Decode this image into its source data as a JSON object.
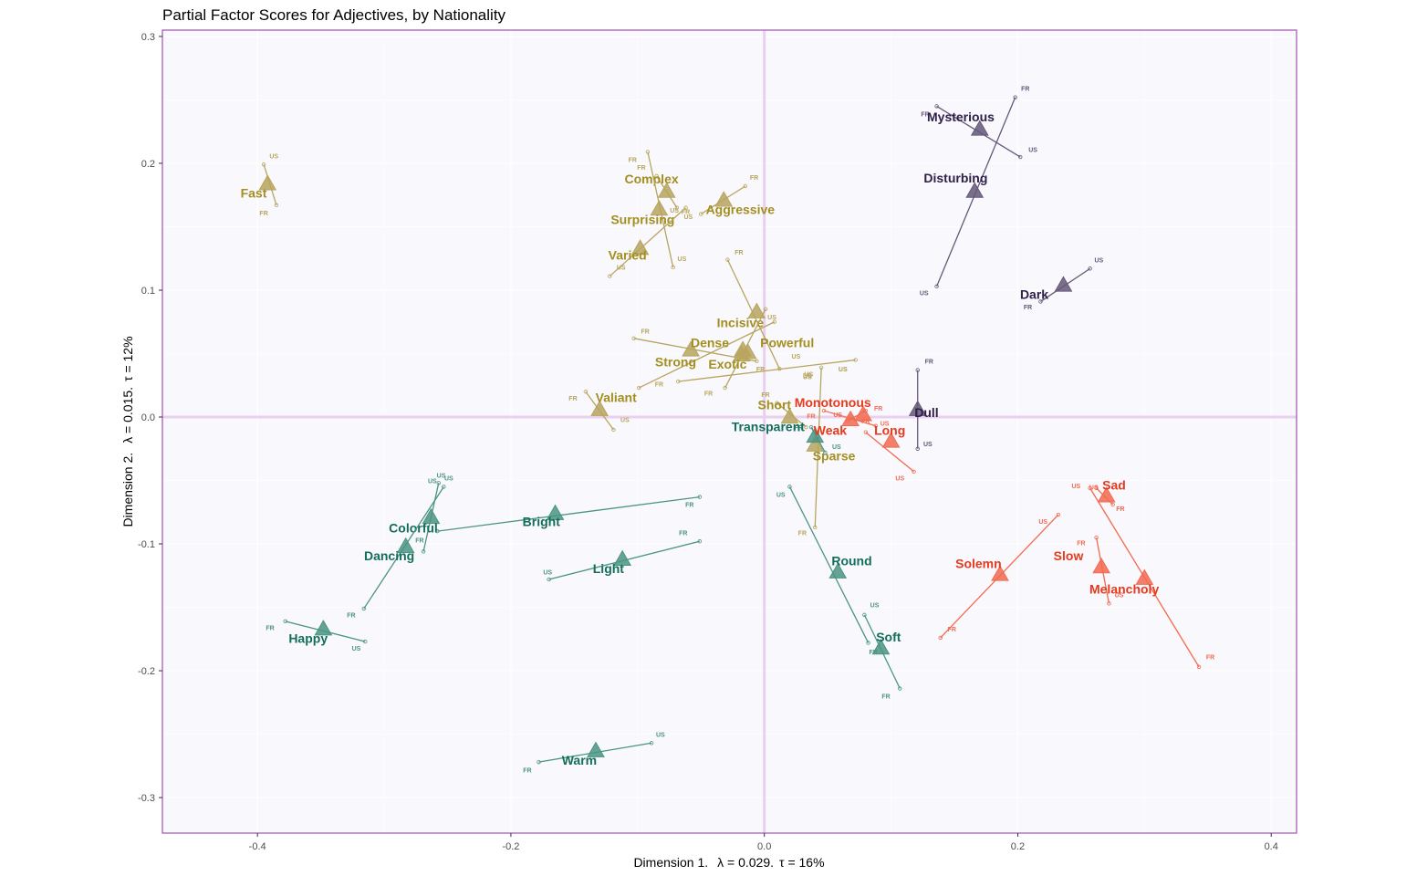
{
  "chart_data": {
    "type": "scatter",
    "title": "Partial Factor Scores for Adjectives, by Nationality",
    "xlabel_parts": [
      "Dimension 1.",
      "λ = 0.029.",
      "τ = 16%"
    ],
    "ylabel_parts": [
      "Dimension 2.",
      "λ = 0.015.",
      "τ = 12%"
    ],
    "xlim": [
      -0.475,
      0.42
    ],
    "ylim": [
      -0.328,
      0.305
    ],
    "xticks": [
      -0.4,
      -0.2,
      0.0,
      0.2,
      0.4
    ],
    "xtick_labels": [
      "-0.4",
      "-0.2",
      "0.0",
      "0.2",
      "0.4"
    ],
    "yticks": [
      -0.3,
      -0.2,
      -0.1,
      0.0,
      0.1,
      0.2,
      0.3
    ],
    "ytick_labels": [
      "-0.3",
      "-0.2",
      "-0.1",
      "0.0",
      "0.1",
      "0.2",
      "0.3"
    ],
    "colors": {
      "olive": "#A38F20",
      "olive_fill": "#B7A55E",
      "teal": "#126E5B",
      "teal_fill": "#4A9482",
      "red": "#E63A1C",
      "red_fill": "#F26A50",
      "purple": "#302048",
      "purple_fill": "#655878",
      "background": "#F9F8FD",
      "border": "#A050B0",
      "origin_line": "#E8D0EE"
    },
    "points": [
      {
        "label": "Fast",
        "group": "olive",
        "x": -0.392,
        "y": 0.184,
        "lx": -0.403,
        "ly": 0.173,
        "fr": [
          -0.385,
          0.167
        ],
        "us": [
          -0.395,
          0.199
        ],
        "frl": [
          -0.395,
          0.159
        ],
        "usl": [
          -0.387,
          0.204
        ]
      },
      {
        "label": "Complex",
        "group": "olive",
        "x": -0.077,
        "y": 0.178,
        "lx": -0.089,
        "ly": 0.184,
        "fr": [
          -0.085,
          0.19
        ],
        "us": [
          -0.069,
          0.165
        ],
        "frl": [
          -0.097,
          0.195
        ],
        "usl": [
          -0.071,
          0.161
        ]
      },
      {
        "label": "Aggressive",
        "group": "olive",
        "x": -0.032,
        "y": 0.171,
        "lx": -0.019,
        "ly": 0.16,
        "fr": [
          -0.015,
          0.182
        ],
        "us": [
          -0.05,
          0.16
        ],
        "frl": [
          -0.008,
          0.187
        ],
        "usl": [
          -0.06,
          0.156
        ]
      },
      {
        "label": "Surprising",
        "group": "olive",
        "x": -0.083,
        "y": 0.164,
        "lx": -0.096,
        "ly": 0.152,
        "fr": [
          -0.092,
          0.209
        ],
        "us": [
          -0.072,
          0.118
        ],
        "frl": [
          -0.104,
          0.201
        ],
        "usl": [
          -0.065,
          0.123
        ]
      },
      {
        "label": "Varied",
        "group": "olive",
        "x": -0.098,
        "y": 0.133,
        "lx": -0.108,
        "ly": 0.124,
        "fr": [
          -0.062,
          0.165
        ],
        "us": [
          -0.122,
          0.111
        ],
        "frl": [
          -0.062,
          0.16
        ],
        "usl": [
          -0.113,
          0.116
        ]
      },
      {
        "label": "Incisive",
        "group": "olive",
        "x": -0.006,
        "y": 0.083,
        "lx": -0.019,
        "ly": 0.071,
        "fr": [
          -0.029,
          0.124
        ],
        "us": [
          0.012,
          0.038
        ],
        "frl": [
          -0.02,
          0.128
        ],
        "usl": [
          0.006,
          0.077
        ]
      },
      {
        "label": "Dense",
        "group": "olive",
        "x": -0.058,
        "y": 0.053,
        "lx": -0.043,
        "ly": 0.055,
        "fr": [
          -0.103,
          0.062
        ],
        "us": [
          -0.006,
          0.044
        ],
        "frl": [
          -0.094,
          0.066
        ],
        "usl": [
          0.025,
          0.046
        ]
      },
      {
        "label": "Powerful",
        "group": "olive",
        "x": -0.017,
        "y": 0.053,
        "lx": 0.018,
        "ly": 0.055,
        "fr": [
          -0.068,
          0.028
        ],
        "us": [
          0.072,
          0.045
        ],
        "frl": [
          -0.083,
          0.024
        ],
        "usl": [
          0.062,
          0.036
        ]
      },
      {
        "label": "Strong",
        "group": "olive",
        "x": -0.018,
        "y": 0.049,
        "lx": -0.07,
        "ly": 0.04,
        "fr": [
          -0.099,
          0.023
        ],
        "us": [
          0.008,
          0.075
        ],
        "frl": [
          -0.044,
          0.017
        ],
        "usl": [
          0.035,
          0.032
        ]
      },
      {
        "label": "Exotic",
        "group": "olive",
        "x": -0.013,
        "y": 0.051,
        "lx": -0.029,
        "ly": 0.038,
        "fr": [
          -0.031,
          0.023
        ],
        "us": [
          0.001,
          0.085
        ],
        "frl": [
          -0.003,
          0.036
        ],
        "usl": [
          0.034,
          0.03
        ]
      },
      {
        "label": "Valiant",
        "group": "olive",
        "x": -0.13,
        "y": 0.006,
        "lx": -0.117,
        "ly": 0.012,
        "fr": [
          -0.141,
          0.02
        ],
        "us": [
          -0.119,
          -0.01
        ],
        "frl": [
          -0.151,
          0.013
        ],
        "usl": [
          -0.11,
          -0.004
        ]
      },
      {
        "label": "Short",
        "group": "olive",
        "x": 0.02,
        "y": 0.0,
        "lx": 0.008,
        "ly": 0.006,
        "fr": [
          0.01,
          0.011
        ],
        "us": [
          0.033,
          -0.008
        ],
        "frl": [
          0.001,
          0.016
        ],
        "usl": [
          0.034,
          0.031
        ]
      },
      {
        "label": "Sparse",
        "group": "olive",
        "x": 0.04,
        "y": -0.022,
        "lx": 0.055,
        "ly": -0.034,
        "fr": [
          0.04,
          -0.087
        ],
        "us": [
          0.045,
          0.039
        ],
        "frl": [
          0.03,
          -0.093
        ],
        "usl": [
          0.062,
          0.036
        ]
      },
      {
        "label": "Transparent",
        "group": "teal",
        "x": 0.04,
        "y": -0.015,
        "lx": 0.003,
        "ly": -0.011,
        "fr": [
          0.037,
          -0.008
        ],
        "us": [
          0.048,
          -0.028
        ],
        "frl": [
          0.027,
          -0.01
        ],
        "usl": [
          0.057,
          -0.025
        ]
      },
      {
        "label": "Bright",
        "group": "teal",
        "x": -0.165,
        "y": -0.076,
        "lx": -0.176,
        "ly": -0.086,
        "fr": [
          -0.051,
          -0.063
        ],
        "us": [
          -0.258,
          -0.09
        ],
        "frl": [
          -0.059,
          -0.071
        ],
        "usl": [
          -0.262,
          -0.052
        ]
      },
      {
        "label": "Colorful",
        "group": "teal",
        "x": -0.263,
        "y": -0.079,
        "lx": -0.277,
        "ly": -0.091,
        "fr": [
          -0.269,
          -0.106
        ],
        "us": [
          -0.257,
          -0.052
        ],
        "frl": [
          -0.272,
          -0.099
        ],
        "usl": [
          -0.249,
          -0.05
        ]
      },
      {
        "label": "Dancing",
        "group": "teal",
        "x": -0.283,
        "y": -0.102,
        "lx": -0.296,
        "ly": -0.113,
        "fr": [
          -0.316,
          -0.151
        ],
        "us": [
          -0.253,
          -0.055
        ],
        "frl": [
          -0.326,
          -0.158
        ],
        "usl": [
          -0.255,
          -0.048
        ]
      },
      {
        "label": "Light",
        "group": "teal",
        "x": -0.112,
        "y": -0.112,
        "lx": -0.123,
        "ly": -0.123,
        "fr": [
          -0.051,
          -0.098
        ],
        "us": [
          -0.17,
          -0.128
        ],
        "frl": [
          -0.064,
          -0.093
        ],
        "usl": [
          -0.171,
          -0.124
        ]
      },
      {
        "label": "Round",
        "group": "teal",
        "x": 0.058,
        "y": -0.122,
        "lx": 0.069,
        "ly": -0.117,
        "fr": [
          0.082,
          -0.178
        ],
        "us": [
          0.02,
          -0.055
        ],
        "frl": [
          0.086,
          -0.187
        ],
        "usl": [
          0.013,
          -0.063
        ]
      },
      {
        "label": "Soft",
        "group": "teal",
        "x": 0.092,
        "y": -0.182,
        "lx": 0.098,
        "ly": -0.177,
        "fr": [
          0.107,
          -0.214
        ],
        "us": [
          0.079,
          -0.156
        ],
        "frl": [
          0.096,
          -0.222
        ],
        "usl": [
          0.087,
          -0.15
        ]
      },
      {
        "label": "Happy",
        "group": "teal",
        "x": -0.348,
        "y": -0.167,
        "lx": -0.36,
        "ly": -0.178,
        "fr": [
          -0.378,
          -0.161
        ],
        "us": [
          -0.315,
          -0.177
        ],
        "frl": [
          -0.39,
          -0.168
        ],
        "usl": [
          -0.322,
          -0.184
        ]
      },
      {
        "label": "Warm",
        "group": "teal",
        "x": -0.133,
        "y": -0.263,
        "lx": -0.146,
        "ly": -0.274,
        "fr": [
          -0.178,
          -0.272
        ],
        "us": [
          -0.089,
          -0.257
        ],
        "frl": [
          -0.187,
          -0.28
        ],
        "usl": [
          -0.082,
          -0.252
        ]
      },
      {
        "label": "Monotonous",
        "group": "red",
        "x": 0.078,
        "y": 0.002,
        "lx": 0.054,
        "ly": 0.008,
        "fr": [
          0.08,
          0.005
        ],
        "us": [
          0.066,
          -0.003
        ],
        "frl": [
          0.09,
          0.005
        ],
        "usl": [
          0.058,
          0.0
        ]
      },
      {
        "label": "Weak",
        "group": "red",
        "x": 0.068,
        "y": -0.002,
        "lx": 0.052,
        "ly": -0.014,
        "fr": [
          0.047,
          0.005
        ],
        "us": [
          0.088,
          -0.007
        ],
        "frl": [
          0.037,
          -0.001
        ],
        "usl": [
          0.095,
          -0.007
        ]
      },
      {
        "label": "Long",
        "group": "red",
        "x": 0.1,
        "y": -0.019,
        "lx": 0.099,
        "ly": -0.014,
        "fr": [
          0.08,
          -0.012
        ],
        "us": [
          0.118,
          -0.043
        ],
        "frl": [
          0.08,
          -0.005
        ],
        "usl": [
          0.107,
          -0.05
        ]
      },
      {
        "label": "Sad",
        "group": "red",
        "x": 0.27,
        "y": -0.062,
        "lx": 0.276,
        "ly": -0.057,
        "fr": [
          0.275,
          -0.069
        ],
        "us": [
          0.262,
          -0.056
        ],
        "frl": [
          0.281,
          -0.074
        ],
        "usl": [
          0.246,
          -0.056
        ]
      },
      {
        "label": "Solemn",
        "group": "red",
        "x": 0.186,
        "y": -0.124,
        "lx": 0.169,
        "ly": -0.119,
        "fr": [
          0.139,
          -0.174
        ],
        "us": [
          0.232,
          -0.077
        ],
        "frl": [
          0.148,
          -0.169
        ],
        "usl": [
          0.22,
          -0.084
        ]
      },
      {
        "label": "Slow",
        "group": "red",
        "x": 0.266,
        "y": -0.118,
        "lx": 0.24,
        "ly": -0.113,
        "fr": [
          0.262,
          -0.095
        ],
        "us": [
          0.272,
          -0.147
        ],
        "frl": [
          0.25,
          -0.101
        ],
        "usl": [
          0.28,
          -0.142
        ]
      },
      {
        "label": "Melancholy",
        "group": "red",
        "x": 0.3,
        "y": -0.127,
        "lx": 0.284,
        "ly": -0.139,
        "fr": [
          0.343,
          -0.197
        ],
        "us": [
          0.257,
          -0.056
        ],
        "frl": [
          0.352,
          -0.191
        ],
        "usl": [
          0.26,
          -0.057
        ]
      },
      {
        "label": "Mysterious",
        "group": "purple",
        "x": 0.17,
        "y": 0.227,
        "lx": 0.155,
        "ly": 0.233,
        "fr": [
          0.136,
          0.245
        ],
        "us": [
          0.202,
          0.205
        ],
        "frl": [
          0.127,
          0.237
        ],
        "usl": [
          0.212,
          0.209
        ]
      },
      {
        "label": "Disturbing",
        "group": "purple",
        "x": 0.166,
        "y": 0.178,
        "lx": 0.151,
        "ly": 0.185,
        "fr": [
          0.198,
          0.252
        ],
        "us": [
          0.136,
          0.103
        ],
        "frl": [
          0.206,
          0.257
        ],
        "usl": [
          0.126,
          0.096
        ]
      },
      {
        "label": "Dark",
        "group": "purple",
        "x": 0.236,
        "y": 0.104,
        "lx": 0.213,
        "ly": 0.093,
        "fr": [
          0.218,
          0.091
        ],
        "us": [
          0.257,
          0.117
        ],
        "frl": [
          0.208,
          0.085
        ],
        "usl": [
          0.264,
          0.122
        ]
      },
      {
        "label": "Dull",
        "group": "purple",
        "x": 0.121,
        "y": 0.006,
        "lx": 0.128,
        "ly": 0.0,
        "fr": [
          0.121,
          0.037
        ],
        "us": [
          0.121,
          -0.025
        ],
        "frl": [
          0.13,
          0.042
        ],
        "usl": [
          0.129,
          -0.023
        ]
      }
    ]
  }
}
